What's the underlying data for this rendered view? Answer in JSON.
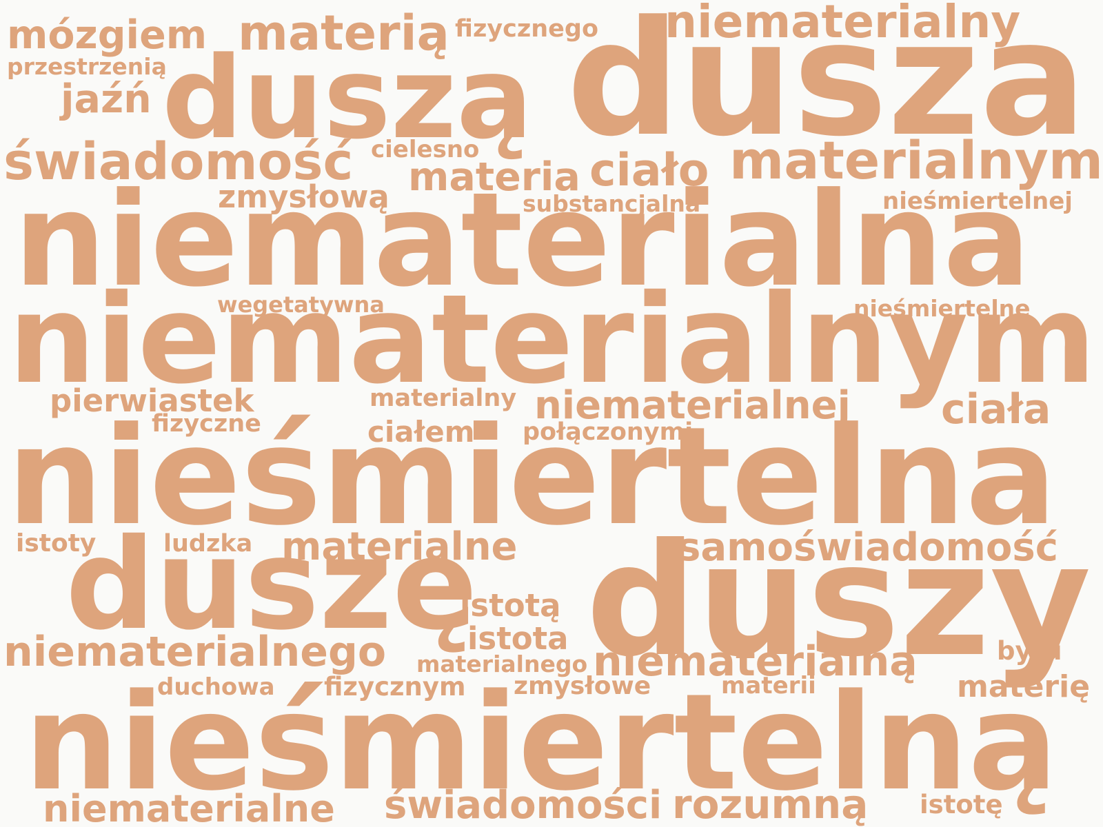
{
  "color": "#dea47c",
  "background": "#fafaf8",
  "words": [
    {
      "id": "w01",
      "text": "mózgiem"
    },
    {
      "id": "w02",
      "text": "materią"
    },
    {
      "id": "w03",
      "text": "fizycznego"
    },
    {
      "id": "w04",
      "text": "niematerialny"
    },
    {
      "id": "w05",
      "text": "przestrzenią"
    },
    {
      "id": "w06",
      "text": "duszą"
    },
    {
      "id": "w07",
      "text": "dusza"
    },
    {
      "id": "w08",
      "text": "jaźń"
    },
    {
      "id": "w09",
      "text": "świadomość"
    },
    {
      "id": "w10",
      "text": "cielesno"
    },
    {
      "id": "w11",
      "text": "materia"
    },
    {
      "id": "w12",
      "text": "ciało"
    },
    {
      "id": "w13",
      "text": "materialnym"
    },
    {
      "id": "w14",
      "text": "zmysłową"
    },
    {
      "id": "w15",
      "text": "substancjalna"
    },
    {
      "id": "w16",
      "text": "nieśmiertelnej"
    },
    {
      "id": "w17",
      "text": "niematerialna"
    },
    {
      "id": "w18",
      "text": "wegetatywna"
    },
    {
      "id": "w19",
      "text": "nieśmiertelne"
    },
    {
      "id": "w20",
      "text": "niematerialnym"
    },
    {
      "id": "w21",
      "text": "pierwiastek"
    },
    {
      "id": "w22",
      "text": "materialny"
    },
    {
      "id": "w23",
      "text": "niematerialnej"
    },
    {
      "id": "w24",
      "text": "ciała"
    },
    {
      "id": "w25",
      "text": "fizyczne"
    },
    {
      "id": "w26",
      "text": "ciałem"
    },
    {
      "id": "w27",
      "text": "połączonymi"
    },
    {
      "id": "w28",
      "text": "nieśmiertelna"
    },
    {
      "id": "w29",
      "text": "istoty"
    },
    {
      "id": "w30",
      "text": "ludzka"
    },
    {
      "id": "w31",
      "text": "materialne"
    },
    {
      "id": "w32",
      "text": "samoświadomość"
    },
    {
      "id": "w33",
      "text": "duszę"
    },
    {
      "id": "w34",
      "text": "duszy"
    },
    {
      "id": "w35",
      "text": "istotą"
    },
    {
      "id": "w36",
      "text": "istota"
    },
    {
      "id": "w37",
      "text": "niematerialnego"
    },
    {
      "id": "w38",
      "text": "materialnego"
    },
    {
      "id": "w39",
      "text": "niematerialną"
    },
    {
      "id": "w40",
      "text": "bytu"
    },
    {
      "id": "w41",
      "text": "duchowa"
    },
    {
      "id": "w42",
      "text": "fizycznym"
    },
    {
      "id": "w43",
      "text": "zmysłowe"
    },
    {
      "id": "w44",
      "text": "materii"
    },
    {
      "id": "w45",
      "text": "materię"
    },
    {
      "id": "w46",
      "text": "nieśmiertelną"
    },
    {
      "id": "w47",
      "text": "niematerialne"
    },
    {
      "id": "w48",
      "text": "świadomości"
    },
    {
      "id": "w49",
      "text": "rozumną"
    },
    {
      "id": "w50",
      "text": "istotę"
    }
  ]
}
